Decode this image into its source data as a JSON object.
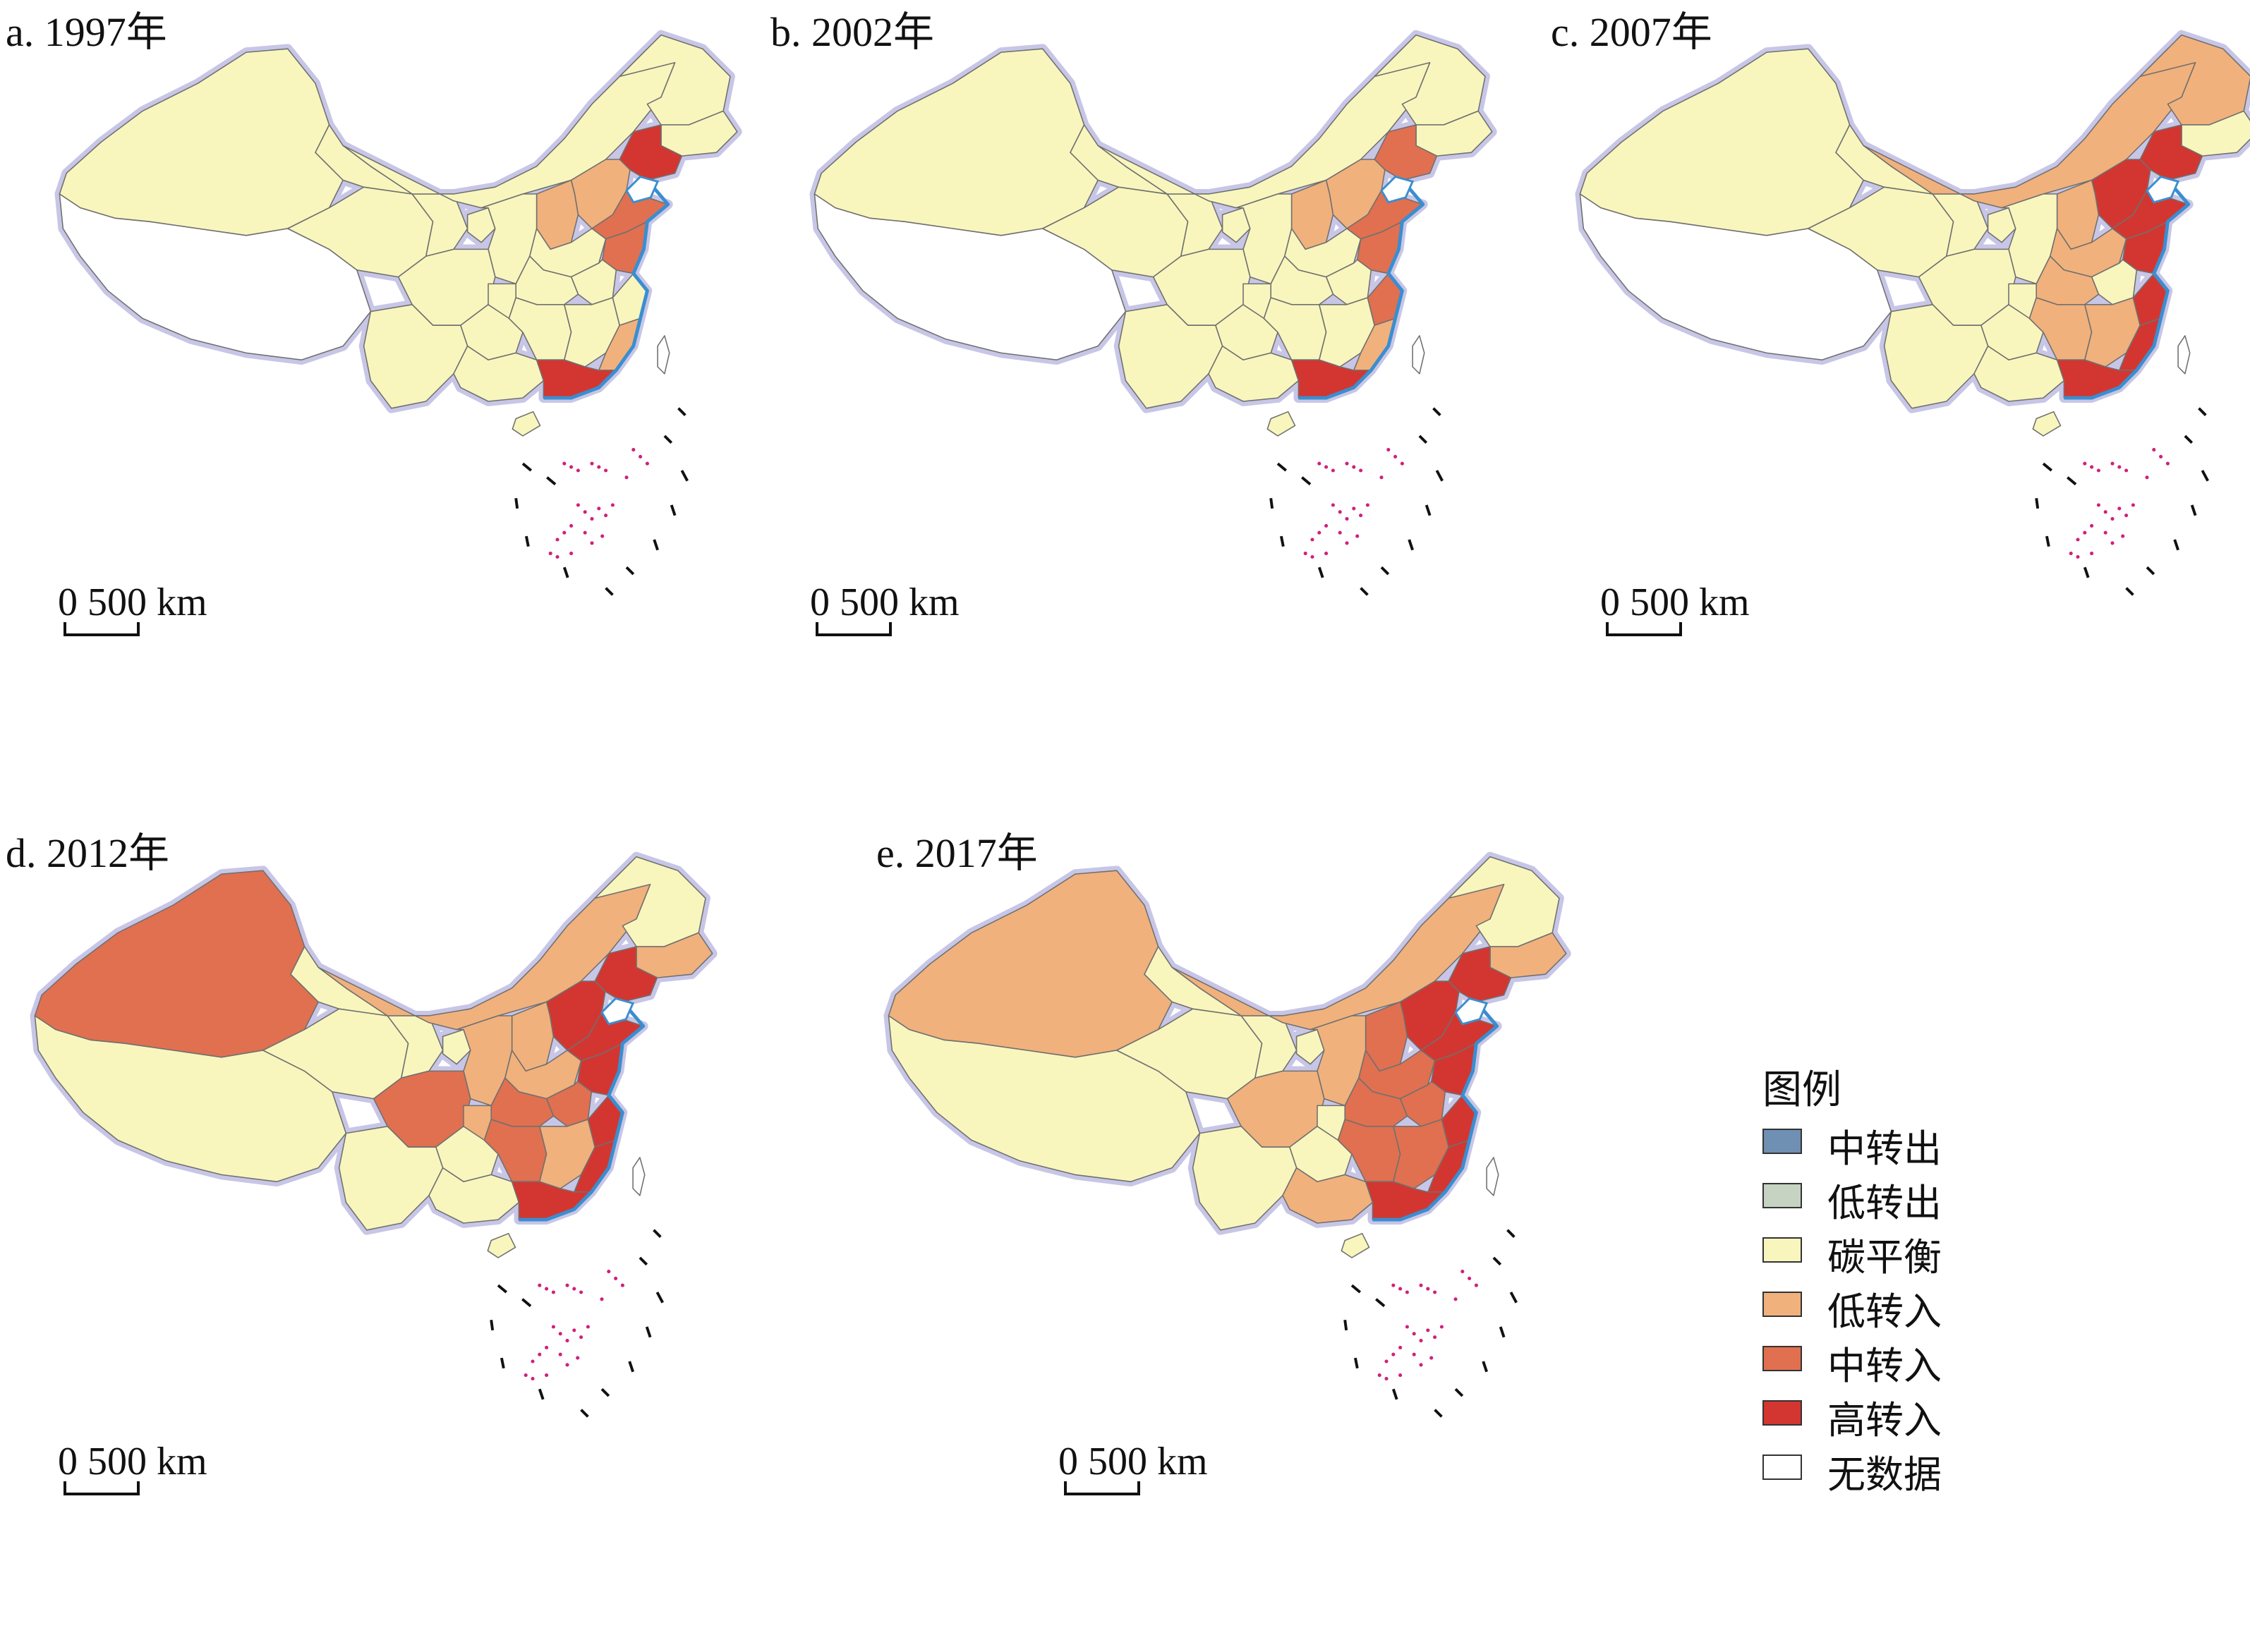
{
  "colors": {
    "mid_out": "#6f8fb3",
    "low_out": "#c7d3c2",
    "balance": "#f8f6bd",
    "low_in": "#f1b17c",
    "mid_in": "#e07050",
    "high_in": "#d33630",
    "no_data": "#ffffff",
    "boundary": "#707070",
    "coast": "#3a8ed0",
    "islands": "#d0207a",
    "halo": "#c8c6e6"
  },
  "panels": [
    {
      "title": "a. 1997年",
      "scale_label": "0  500 km",
      "regions": {
        "xinjiang": "balance",
        "tibet": "no_data",
        "qinghai": "balance",
        "gansu": "balance",
        "inner_mongolia": "balance",
        "heilongjiang": "balance",
        "jilin": "balance",
        "liaoning": "high_in",
        "hebei": "low_in",
        "shanxi": "low_in",
        "shaanxi": "balance",
        "ningxia": "balance",
        "shandong": "mid_in",
        "henan": "balance",
        "jiangsu": "mid_in",
        "anhui": "balance",
        "hubei": "balance",
        "sichuan": "balance",
        "chongqing": "balance",
        "guizhou": "balance",
        "yunnan": "balance",
        "guangxi": "balance",
        "hunan": "balance",
        "jiangxi": "balance",
        "zhejiang": "balance",
        "fujian": "low_in",
        "guangdong": "high_in",
        "hainan": "balance",
        "taiwan": "no_data"
      }
    },
    {
      "title": "b. 2002年",
      "scale_label": "0  500 km",
      "regions": {
        "xinjiang": "balance",
        "tibet": "no_data",
        "qinghai": "balance",
        "gansu": "balance",
        "inner_mongolia": "balance",
        "heilongjiang": "balance",
        "jilin": "balance",
        "liaoning": "mid_in",
        "hebei": "low_in",
        "shanxi": "low_in",
        "shaanxi": "balance",
        "ningxia": "balance",
        "shandong": "mid_in",
        "henan": "balance",
        "jiangsu": "mid_in",
        "anhui": "balance",
        "hubei": "balance",
        "sichuan": "balance",
        "chongqing": "balance",
        "guizhou": "balance",
        "yunnan": "balance",
        "guangxi": "balance",
        "hunan": "balance",
        "jiangxi": "balance",
        "zhejiang": "mid_in",
        "fujian": "low_in",
        "guangdong": "high_in",
        "hainan": "balance",
        "taiwan": "no_data"
      }
    },
    {
      "title": "c. 2007年",
      "scale_label": "0  500 km",
      "regions": {
        "xinjiang": "balance",
        "tibet": "no_data",
        "qinghai": "balance",
        "gansu": "balance",
        "inner_mongolia": "low_in",
        "heilongjiang": "low_in",
        "jilin": "balance",
        "liaoning": "high_in",
        "hebei": "high_in",
        "shanxi": "low_in",
        "shaanxi": "balance",
        "ningxia": "balance",
        "shandong": "high_in",
        "henan": "low_in",
        "jiangsu": "high_in",
        "anhui": "balance",
        "hubei": "low_in",
        "sichuan": "balance",
        "chongqing": "balance",
        "guizhou": "balance",
        "yunnan": "balance",
        "guangxi": "balance",
        "hunan": "low_in",
        "jiangxi": "low_in",
        "zhejiang": "high_in",
        "fujian": "high_in",
        "guangdong": "high_in",
        "hainan": "balance",
        "taiwan": "no_data"
      }
    },
    {
      "title": "d. 2012年",
      "scale_label": "0  500 km",
      "regions": {
        "xinjiang": "mid_in",
        "tibet": "balance",
        "qinghai": "balance",
        "gansu": "balance",
        "inner_mongolia": "low_in",
        "heilongjiang": "balance",
        "jilin": "low_in",
        "liaoning": "high_in",
        "hebei": "high_in",
        "shanxi": "low_in",
        "shaanxi": "low_in",
        "ningxia": "balance",
        "shandong": "high_in",
        "henan": "low_in",
        "jiangsu": "high_in",
        "anhui": "mid_in",
        "hubei": "mid_in",
        "sichuan": "mid_in",
        "chongqing": "low_in",
        "guizhou": "balance",
        "yunnan": "balance",
        "guangxi": "balance",
        "hunan": "mid_in",
        "jiangxi": "low_in",
        "zhejiang": "high_in",
        "fujian": "high_in",
        "guangdong": "high_in",
        "hainan": "balance",
        "taiwan": "no_data"
      }
    },
    {
      "title": "e. 2017年",
      "scale_label": "0  500 km",
      "regions": {
        "xinjiang": "low_in",
        "tibet": "balance",
        "qinghai": "balance",
        "gansu": "balance",
        "inner_mongolia": "low_in",
        "heilongjiang": "balance",
        "jilin": "low_in",
        "liaoning": "high_in",
        "hebei": "high_in",
        "shanxi": "mid_in",
        "shaanxi": "low_in",
        "ningxia": "balance",
        "shandong": "high_in",
        "henan": "mid_in",
        "jiangsu": "high_in",
        "anhui": "mid_in",
        "hubei": "mid_in",
        "sichuan": "low_in",
        "chongqing": "balance",
        "guizhou": "balance",
        "yunnan": "balance",
        "guangxi": "low_in",
        "hunan": "mid_in",
        "jiangxi": "mid_in",
        "zhejiang": "high_in",
        "fujian": "high_in",
        "guangdong": "high_in",
        "hainan": "balance",
        "taiwan": "no_data"
      }
    }
  ],
  "legend": {
    "title": "图例",
    "items": [
      {
        "label": "中转出",
        "class": "mid_out"
      },
      {
        "label": "低转出",
        "class": "low_out"
      },
      {
        "label": "碳平衡",
        "class": "balance"
      },
      {
        "label": "低转入",
        "class": "low_in"
      },
      {
        "label": "中转入",
        "class": "mid_in"
      },
      {
        "label": "高转入",
        "class": "high_in"
      },
      {
        "label": "无数据",
        "class": "no_data"
      }
    ]
  }
}
